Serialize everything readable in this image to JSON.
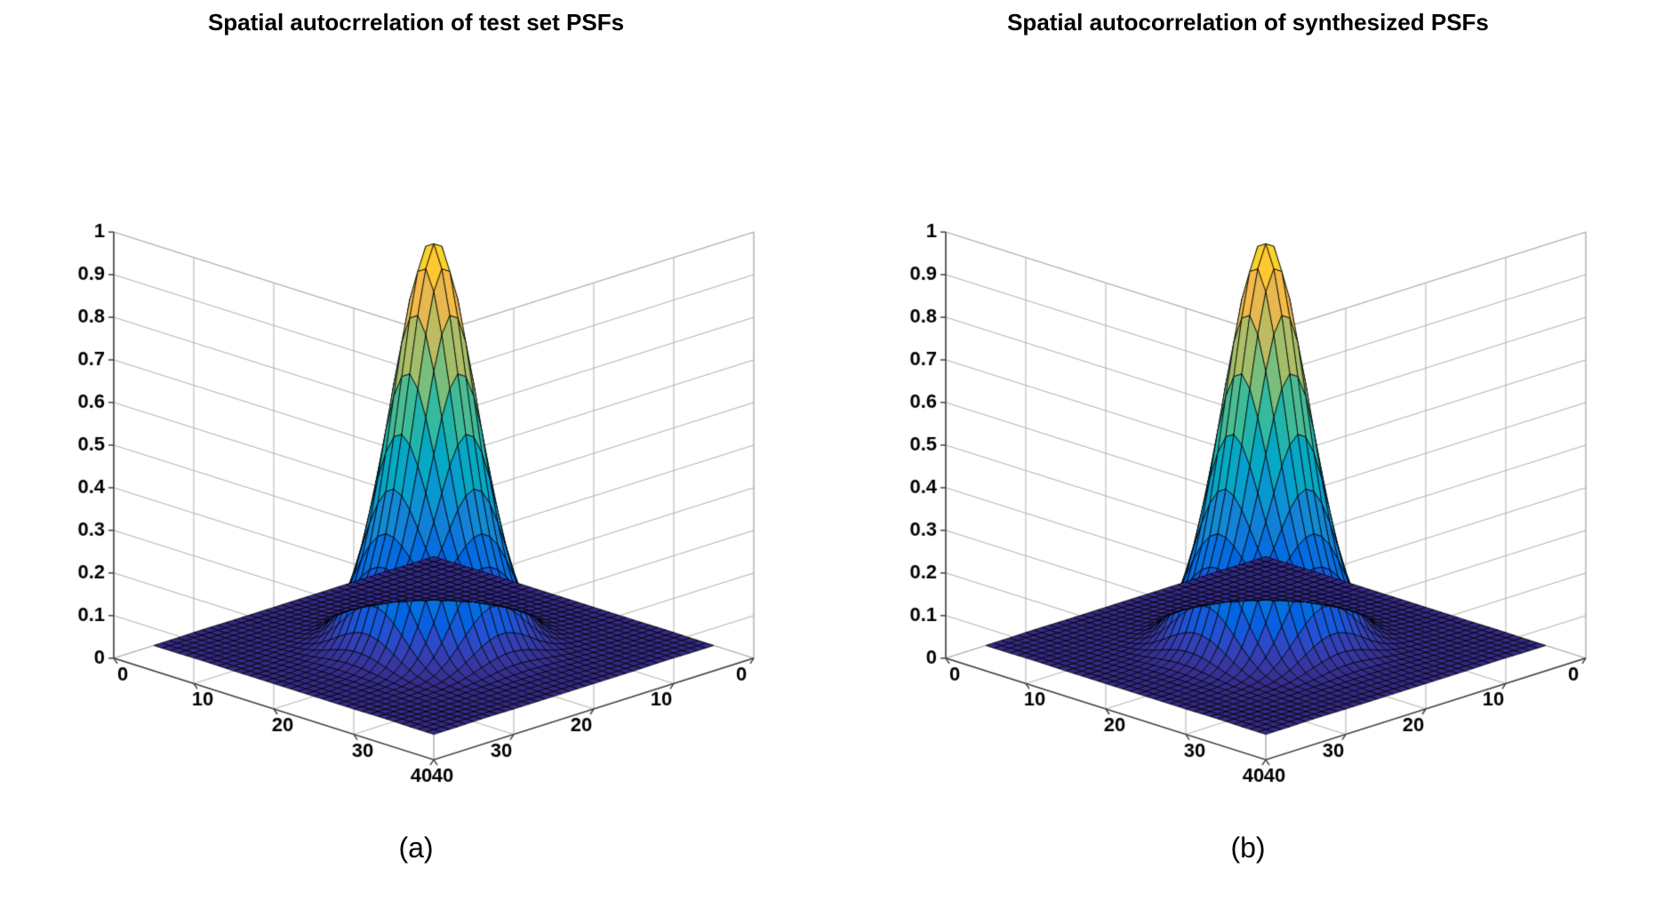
{
  "background_color": "#ffffff",
  "subplots": [
    {
      "title": "Spatial autocrrelation of test set PSFs",
      "sub_label": "(a)",
      "grid_size": 35,
      "x_range": [
        0,
        40
      ],
      "y_range": [
        0,
        40
      ],
      "z_range": [
        0,
        1
      ],
      "z_ticks": [
        0,
        0.1,
        0.2,
        0.3,
        0.4,
        0.5,
        0.6,
        0.7,
        0.8,
        0.9,
        1
      ],
      "xy_ticks": [
        0,
        10,
        20,
        30,
        40
      ],
      "peak_center": [
        17.5,
        17.5
      ],
      "peak_height": 0.95,
      "sigma": 3.8,
      "colormap": "parula",
      "grid_color": "#b0b0b0",
      "axis_line_color": "#404040",
      "tick_font_size": 22,
      "tick_font_weight": "bold",
      "mesh_line_color": "#000000",
      "mesh_line_width": 0.8
    },
    {
      "title": "Spatial autocorrelation of synthesized PSFs",
      "sub_label": "(b)",
      "grid_size": 35,
      "x_range": [
        0,
        40
      ],
      "y_range": [
        0,
        40
      ],
      "z_range": [
        0,
        1
      ],
      "z_ticks": [
        0,
        0.1,
        0.2,
        0.3,
        0.4,
        0.5,
        0.6,
        0.7,
        0.8,
        0.9,
        1
      ],
      "xy_ticks": [
        0,
        10,
        20,
        30,
        40
      ],
      "peak_center": [
        17.5,
        17.5
      ],
      "peak_height": 0.95,
      "sigma": 3.8,
      "colormap": "parula",
      "grid_color": "#b0b0b0",
      "axis_line_color": "#404040",
      "tick_font_size": 22,
      "tick_font_weight": "bold",
      "mesh_line_color": "#000000",
      "mesh_line_width": 0.8
    }
  ],
  "parula_colors": [
    [
      53,
      42,
      135
    ],
    [
      54,
      48,
      147
    ],
    [
      54,
      55,
      160
    ],
    [
      53,
      61,
      173
    ],
    [
      50,
      67,
      186
    ],
    [
      44,
      74,
      199
    ],
    [
      32,
      83,
      212
    ],
    [
      15,
      92,
      221
    ],
    [
      3,
      99,
      225
    ],
    [
      2,
      104,
      225
    ],
    [
      4,
      109,
      224
    ],
    [
      8,
      113,
      222
    ],
    [
      13,
      117,
      220
    ],
    [
      16,
      121,
      218
    ],
    [
      18,
      125,
      216
    ],
    [
      20,
      129,
      214
    ],
    [
      20,
      133,
      212
    ],
    [
      19,
      137,
      211
    ],
    [
      16,
      142,
      210
    ],
    [
      12,
      147,
      210
    ],
    [
      9,
      152,
      209
    ],
    [
      7,
      156,
      207
    ],
    [
      6,
      160,
      205
    ],
    [
      6,
      164,
      202
    ],
    [
      6,
      167,
      198
    ],
    [
      7,
      169,
      194
    ],
    [
      10,
      172,
      190
    ],
    [
      15,
      174,
      185
    ],
    [
      21,
      177,
      180
    ],
    [
      29,
      179,
      175
    ],
    [
      37,
      181,
      169
    ],
    [
      46,
      183,
      164
    ],
    [
      56,
      185,
      158
    ],
    [
      66,
      187,
      152
    ],
    [
      77,
      188,
      146
    ],
    [
      89,
      189,
      140
    ],
    [
      101,
      190,
      134
    ],
    [
      113,
      191,
      128
    ],
    [
      124,
      191,
      123
    ],
    [
      135,
      191,
      119
    ],
    [
      146,
      191,
      115
    ],
    [
      156,
      191,
      111
    ],
    [
      165,
      190,
      107
    ],
    [
      174,
      190,
      103
    ],
    [
      183,
      189,
      100
    ],
    [
      192,
      188,
      96
    ],
    [
      200,
      188,
      93
    ],
    [
      209,
      187,
      89
    ],
    [
      217,
      186,
      86
    ],
    [
      225,
      185,
      82
    ],
    [
      233,
      185,
      78
    ],
    [
      241,
      185,
      74
    ],
    [
      248,
      187,
      68
    ],
    [
      253,
      190,
      61
    ],
    [
      255,
      195,
      55
    ],
    [
      254,
      200,
      50
    ],
    [
      252,
      206,
      46
    ],
    [
      250,
      211,
      42
    ],
    [
      247,
      216,
      38
    ],
    [
      245,
      222,
      33
    ],
    [
      245,
      228,
      29
    ],
    [
      245,
      235,
      24
    ],
    [
      246,
      243,
      19
    ],
    [
      249,
      251,
      14
    ]
  ]
}
